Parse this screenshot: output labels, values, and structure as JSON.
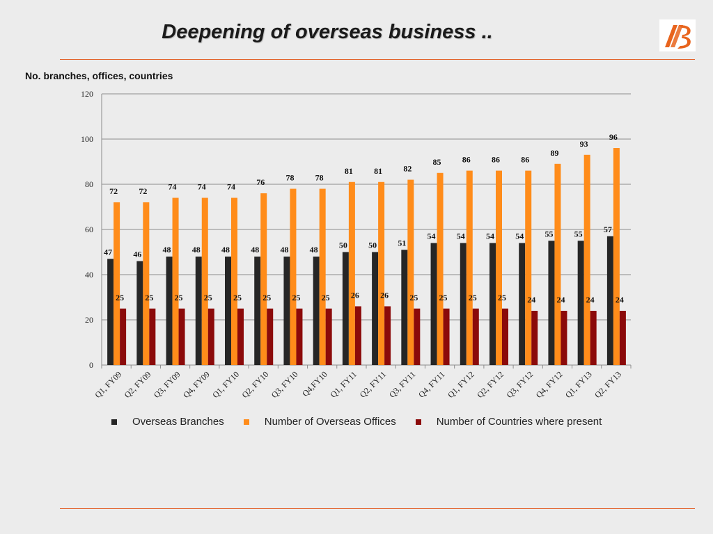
{
  "slide": {
    "title": "Deepening of overseas business ..",
    "subtitle": "No. branches, offices, countries"
  },
  "colors": {
    "accent_rule": "#e2632c",
    "logo": "#e8641d"
  },
  "chart_data": {
    "type": "bar",
    "title": "",
    "xlabel": "",
    "ylabel": "",
    "ylim": [
      0,
      120
    ],
    "yticks": [
      0,
      20,
      40,
      60,
      80,
      100,
      120
    ],
    "grid": true,
    "legend_position": "bottom",
    "categories": [
      "Q1, FY09",
      "Q2, FY09",
      "Q3, FY09",
      "Q4, FY09",
      "Q1, FY10",
      "Q2, FY10",
      "Q3, FY10",
      "Q4,FY10",
      "Q1, FY11",
      "Q2, FY11",
      "Q3, FY11",
      "Q4, FY11",
      "Q1, FY12",
      "Q2, FY12",
      "Q3, FY12",
      "Q4, FY12",
      "Q1, FY13",
      "Q2, FY13"
    ],
    "series": [
      {
        "name": "Overseas Branches",
        "color": "#262626",
        "values": [
          47,
          46,
          48,
          48,
          48,
          48,
          48,
          48,
          50,
          50,
          51,
          54,
          54,
          54,
          54,
          55,
          55,
          57
        ]
      },
      {
        "name": "Number of Overseas Offices",
        "color": "#ff8c1a",
        "values": [
          72,
          72,
          74,
          74,
          74,
          76,
          78,
          78,
          81,
          81,
          82,
          85,
          86,
          86,
          86,
          89,
          93,
          96
        ]
      },
      {
        "name": "Number of Countries where present",
        "color": "#8b0a0a",
        "values": [
          25,
          25,
          25,
          25,
          25,
          25,
          25,
          25,
          26,
          26,
          25,
          25,
          25,
          25,
          24,
          24,
          24,
          24
        ]
      }
    ]
  }
}
